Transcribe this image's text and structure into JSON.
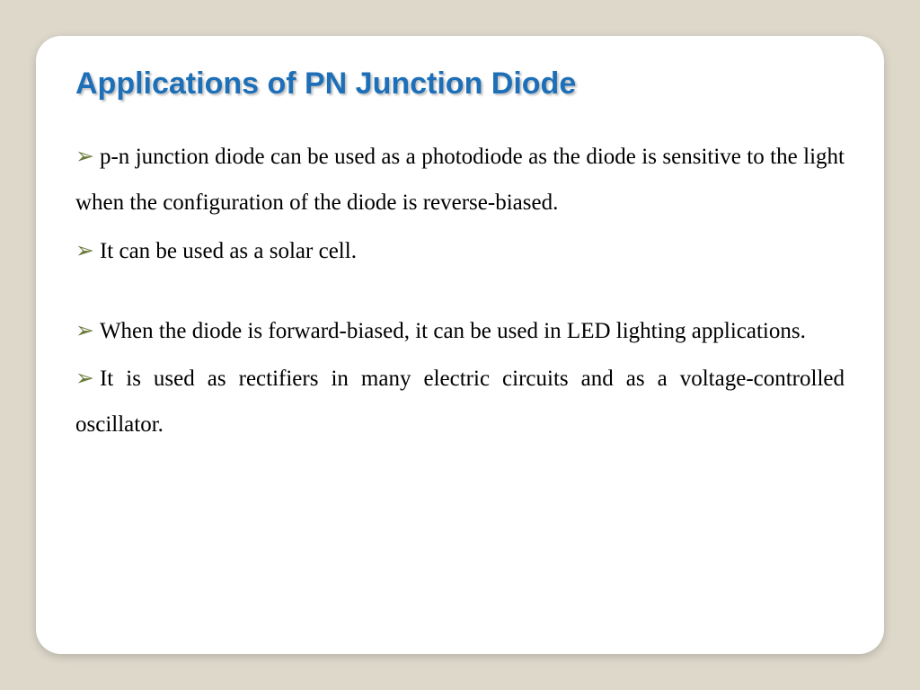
{
  "slide": {
    "title": "Applications of PN Junction Diode",
    "title_color": "#1d6fb8",
    "title_fontsize": 34,
    "title_font": "Verdana",
    "body_font": "Times New Roman",
    "body_fontsize": 25,
    "body_color": "#000000",
    "bullet_marker": "➢",
    "bullet_color": "#6a7a3a",
    "background_color": "#ddd8ca",
    "card_background": "#ffffff",
    "card_border_radius": 28,
    "bullets": [
      "p-n junction diode can be used as a photodiode as the diode is sensitive to the light when the configuration of the diode is reverse-biased.",
      "It can be used as a solar cell.",
      "When the diode is forward-biased, it can be used in LED lighting applications.",
      "It is used as rectifiers in many electric circuits and as a voltage-controlled oscillator."
    ],
    "gap_after_index": 1
  }
}
